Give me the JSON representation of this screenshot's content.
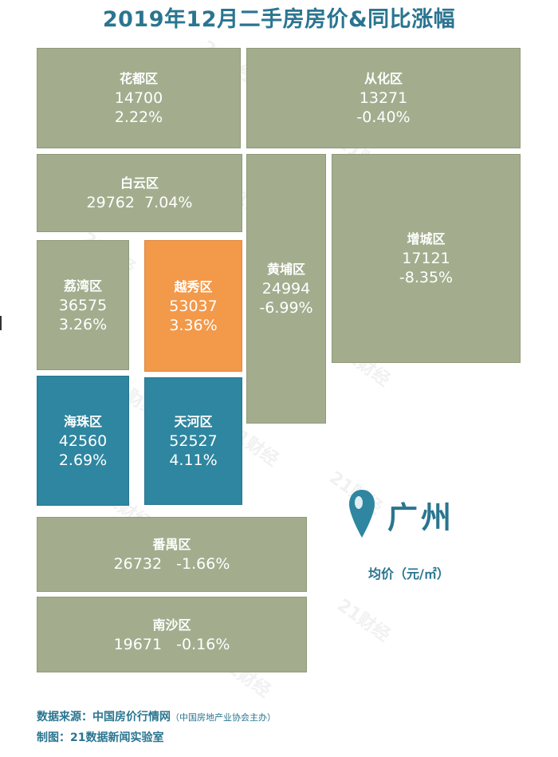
{
  "title": "2019年12月二手房房价&同比涨幅",
  "chart_data": {
    "type": "table",
    "title": "2019年12月二手房房价&同比涨幅",
    "districts": [
      {
        "name": "花都区",
        "price": "14700",
        "change": "2.22%"
      },
      {
        "name": "从化区",
        "price": "13271",
        "change": "-0.40%"
      },
      {
        "name": "白云区",
        "price": "29762",
        "change": "7.04%"
      },
      {
        "name": "黄埔区",
        "price": "24994",
        "change": "-6.99%"
      },
      {
        "name": "增城区",
        "price": "17121",
        "change": "-8.35%"
      },
      {
        "name": "荔湾区",
        "price": "36575",
        "change": "3.26%"
      },
      {
        "name": "越秀区",
        "price": "53037",
        "change": "3.36%"
      },
      {
        "name": "海珠区",
        "price": "42560",
        "change": "2.69%"
      },
      {
        "name": "天河区",
        "price": "52527",
        "change": "4.11%"
      },
      {
        "name": "番禺区",
        "price": "26732",
        "change": "-1.66%"
      },
      {
        "name": "南沙区",
        "price": "19671",
        "change": "-0.16%"
      }
    ],
    "colors": {
      "default": "#a3ad8e",
      "highest": "#f2994a",
      "high": "#2e86a0"
    }
  },
  "legend": {
    "city": "广州",
    "unit": "均价（元/㎡）"
  },
  "watermark": "21财经",
  "footer": {
    "source_label": "数据来源：中国房价行情网",
    "source_note": "（中国房地产业协会主办）",
    "credit": "制图：21数据新闻实验室"
  }
}
